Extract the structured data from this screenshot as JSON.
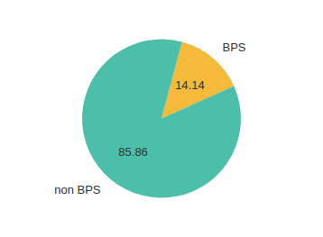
{
  "chart_data": {
    "type": "pie",
    "categories": [
      "BPS",
      "non BPS"
    ],
    "values": [
      14.14,
      85.86
    ],
    "colors": [
      "#F5BA3A",
      "#4BBFAA"
    ],
    "data_labels": true
  }
}
